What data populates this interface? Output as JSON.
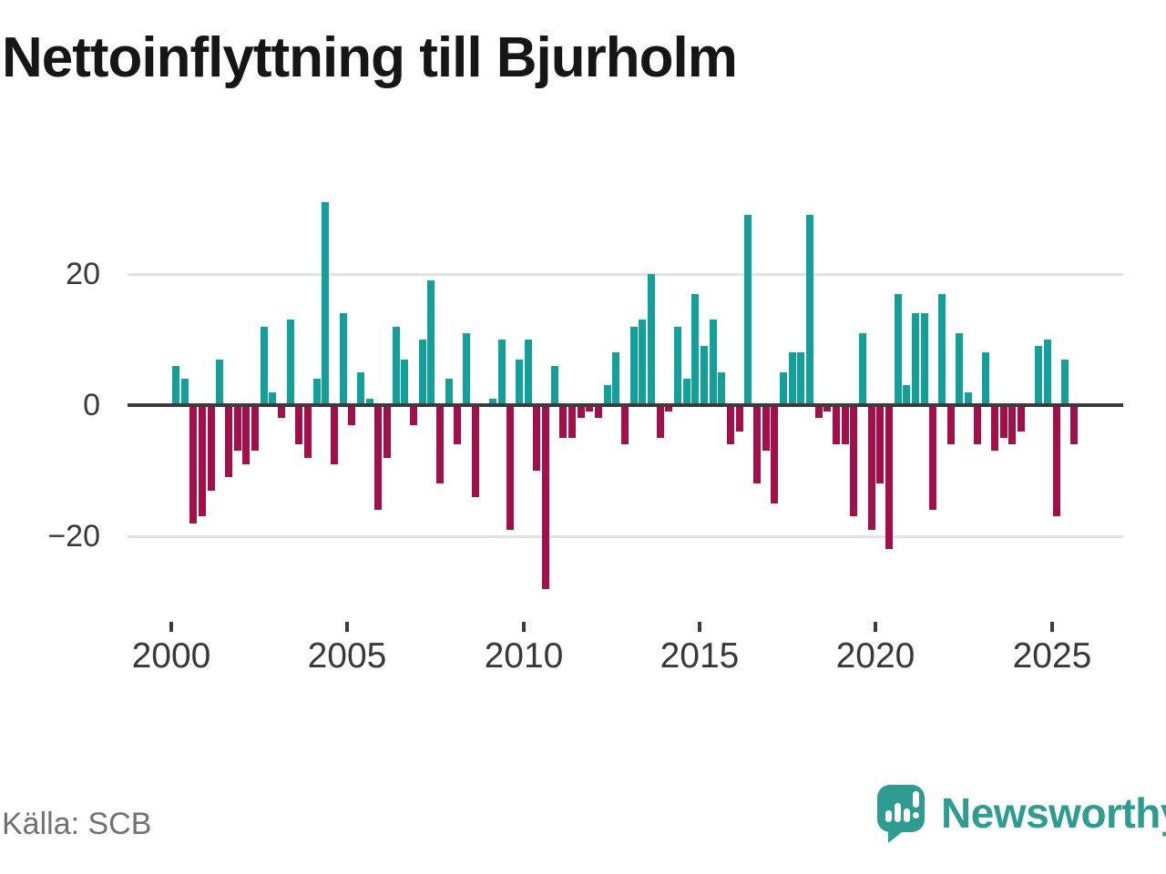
{
  "title": "Nettoinflyttning till Bjurholm",
  "source": "Källa: SCB",
  "brand": {
    "name": "Newsworthy",
    "logo_icon": "speech-bubble-bar-chart"
  },
  "colors": {
    "positive": "#13a09b",
    "negative": "#a30f48",
    "axis": "#3b3b3b",
    "gridline": "#e3e3e3",
    "brand_teal": "#2f9c92",
    "text_dark": "#161618",
    "text_gray": "#717171"
  },
  "chart_data": {
    "type": "bar",
    "title": "Nettoinflyttning till Bjurholm",
    "frequency": "quarterly",
    "start": "2000Q1",
    "end": "2025Q3",
    "grid": "horizontal",
    "legend": "none",
    "ylim": [
      -30,
      33
    ],
    "y_gridlines": [
      20,
      -20
    ],
    "y_tick_labels": [
      "20",
      "0",
      "−20"
    ],
    "x_tick_labels": [
      "2000",
      "2005",
      "2010",
      "2015",
      "2020",
      "2025"
    ],
    "series_by_year": [
      {
        "year": 2000,
        "values": [
          6,
          4,
          -18,
          -17
        ]
      },
      {
        "year": 2001,
        "values": [
          -13,
          7,
          -11,
          -7
        ]
      },
      {
        "year": 2002,
        "values": [
          -9,
          -7,
          12,
          2
        ]
      },
      {
        "year": 2003,
        "values": [
          -2,
          13,
          -6,
          -8
        ]
      },
      {
        "year": 2004,
        "values": [
          4,
          31,
          -9,
          14
        ]
      },
      {
        "year": 2005,
        "values": [
          -3,
          5,
          1,
          -16
        ]
      },
      {
        "year": 2006,
        "values": [
          -8,
          12,
          7,
          -3
        ]
      },
      {
        "year": 2007,
        "values": [
          10,
          19,
          -12,
          4
        ]
      },
      {
        "year": 2008,
        "values": [
          -6,
          11,
          -14,
          0
        ]
      },
      {
        "year": 2009,
        "values": [
          1,
          10,
          -19,
          7
        ]
      },
      {
        "year": 2010,
        "values": [
          10,
          -10,
          -28,
          6
        ]
      },
      {
        "year": 2011,
        "values": [
          -5,
          -5,
          -2,
          -1
        ]
      },
      {
        "year": 2012,
        "values": [
          -2,
          3,
          8,
          -6
        ]
      },
      {
        "year": 2013,
        "values": [
          12,
          13,
          20,
          -5
        ]
      },
      {
        "year": 2014,
        "values": [
          -1,
          12,
          4,
          17
        ]
      },
      {
        "year": 2015,
        "values": [
          9,
          13,
          5,
          -6
        ]
      },
      {
        "year": 2016,
        "values": [
          -4,
          29,
          -12,
          -7
        ]
      },
      {
        "year": 2017,
        "values": [
          -15,
          5,
          8,
          8
        ]
      },
      {
        "year": 2018,
        "values": [
          29,
          -2,
          -1,
          -6
        ]
      },
      {
        "year": 2019,
        "values": [
          -6,
          -17,
          11,
          -19
        ]
      },
      {
        "year": 2020,
        "values": [
          -12,
          -22,
          17,
          3
        ]
      },
      {
        "year": 2021,
        "values": [
          14,
          14,
          -16,
          17
        ]
      },
      {
        "year": 2022,
        "values": [
          -6,
          11,
          2,
          -6
        ]
      },
      {
        "year": 2023,
        "values": [
          8,
          -7,
          -5,
          -6
        ]
      },
      {
        "year": 2024,
        "values": [
          -4,
          0,
          9,
          10
        ]
      },
      {
        "year": 2025,
        "values": [
          -17,
          7,
          -6
        ]
      }
    ]
  }
}
